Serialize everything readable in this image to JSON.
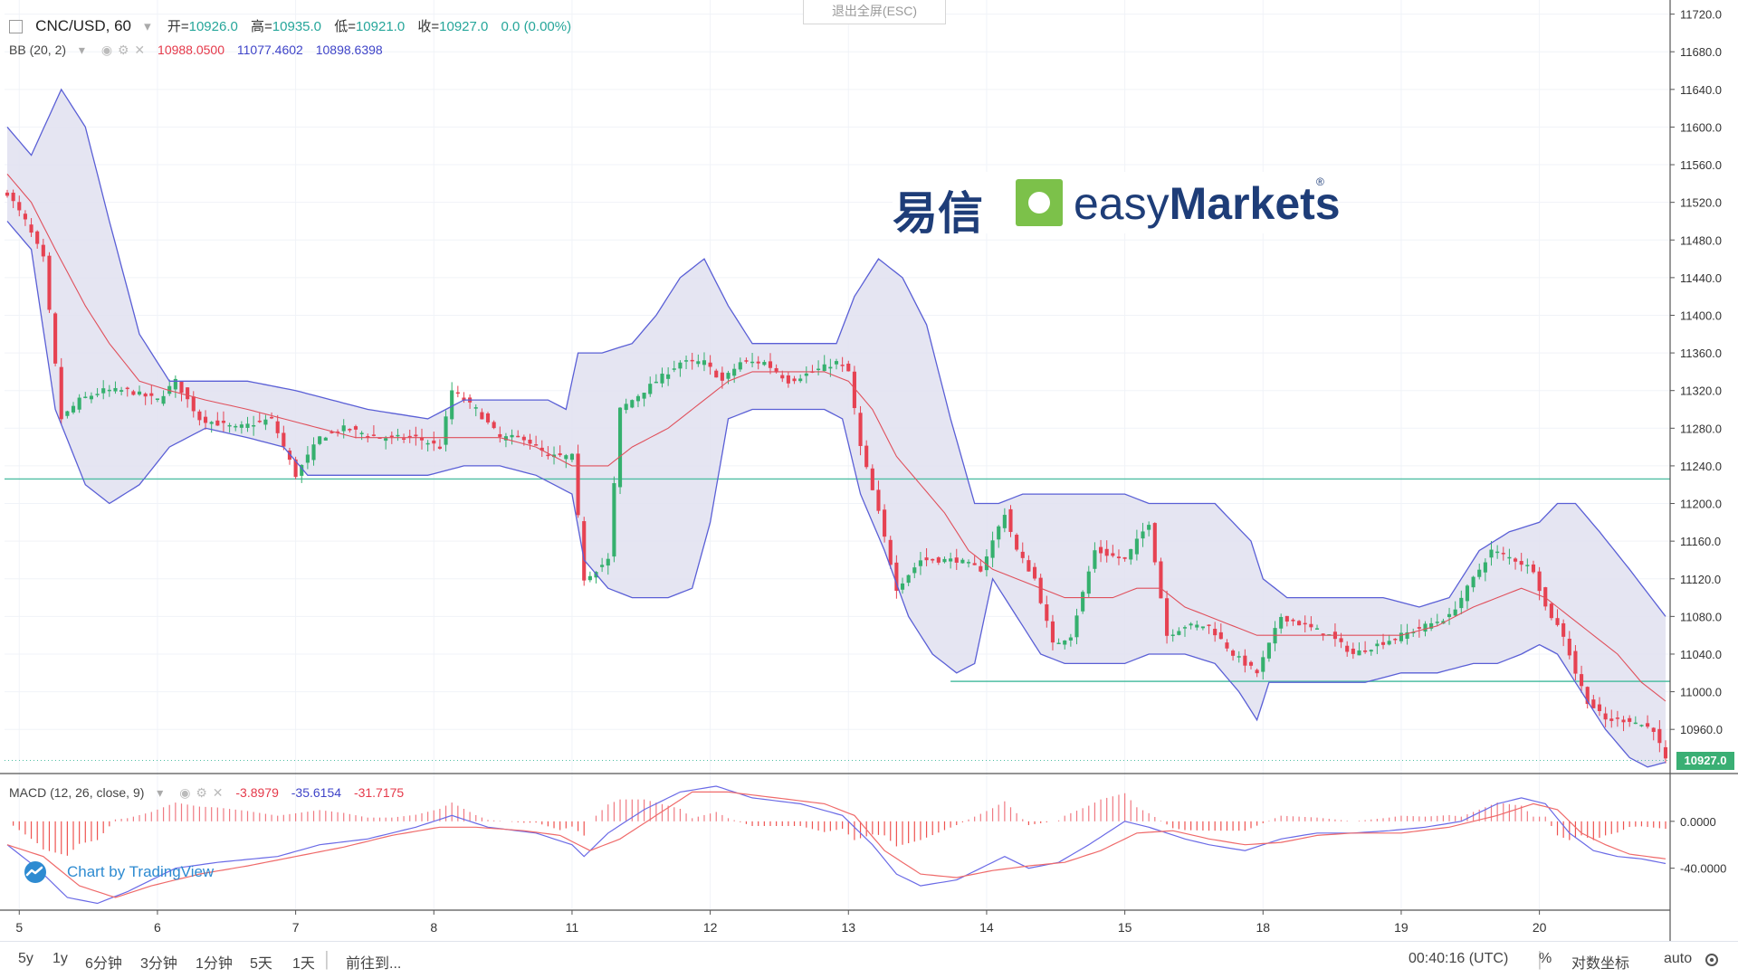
{
  "header": {
    "symbol": "CNC/USD, 60",
    "open_label": "开=",
    "open": "10926.0",
    "high_label": "高=",
    "high": "10935.0",
    "low_label": "低=",
    "low": "10921.0",
    "close_label": "收=",
    "close": "10927.0",
    "change": "0.0 (0.00%)",
    "bb_label": "BB (20, 2)",
    "bb_mid": "10988.0500",
    "bb_upper": "11077.4602",
    "bb_lower": "10898.6398",
    "macd_label": "MACD (12, 26, close, 9)",
    "macd_hist": "-3.8979",
    "macd_line": "-35.6154",
    "macd_signal": "-31.7175"
  },
  "overlay": {
    "esc_text": "退出全屏(ESC)",
    "logo_cn": "易信",
    "logo_en_light": "easy",
    "logo_en_bold": "Markets",
    "logo_reg": "®",
    "tradingview": "Chart by TradingView",
    "last_price": "10927.0"
  },
  "bottombar": {
    "ranges": [
      "5y",
      "1y",
      "6分钟",
      "3分钟",
      "1分钟",
      "5天",
      "1天"
    ],
    "goto": "前往到...",
    "clock": "00:40:16 (UTC)",
    "percent": "%",
    "log": "对数坐标",
    "auto": "auto"
  },
  "colors": {
    "up": "#26a69a",
    "down": "#ef5350",
    "upBody": "#35b06e",
    "downBody": "#e64252",
    "bbUpper": "#5a5fd6",
    "bbMid": "#e0505c",
    "band": "#e1e1f0",
    "macd": "#6a6ae6",
    "signal": "#ef6a6a",
    "hline": "#4fbea3",
    "accent": "#3aaf74"
  },
  "chart_data": {
    "type": "candlestick",
    "interval": "60",
    "y_ticks": [
      "11720.0",
      "11680.0",
      "11640.0",
      "11600.0",
      "11560.0",
      "11520.0",
      "11480.0",
      "11440.0",
      "11400.0",
      "11360.0",
      "11320.0",
      "11280.0",
      "11240.0",
      "11200.0",
      "11160.0",
      "11120.0",
      "11080.0",
      "11040.0",
      "11000.0",
      "10960.0"
    ],
    "ylim": [
      10915,
      11735
    ],
    "x_labels": [
      {
        "label": "5",
        "i": 2
      },
      {
        "label": "6",
        "i": 25
      },
      {
        "label": "7",
        "i": 48
      },
      {
        "label": "8",
        "i": 71
      },
      {
        "label": "11",
        "i": 94
      },
      {
        "label": "12",
        "i": 117
      },
      {
        "label": "13",
        "i": 140
      },
      {
        "label": "14",
        "i": 163
      },
      {
        "label": "15",
        "i": 186
      },
      {
        "label": "18",
        "i": 209
      },
      {
        "label": "19",
        "i": 232
      },
      {
        "label": "20",
        "i": 255
      }
    ],
    "close_anchors": [
      [
        0,
        11530
      ],
      [
        3,
        11500
      ],
      [
        6,
        11460
      ],
      [
        9,
        11290
      ],
      [
        12,
        11310
      ],
      [
        16,
        11320
      ],
      [
        20,
        11320
      ],
      [
        25,
        11310
      ],
      [
        28,
        11330
      ],
      [
        32,
        11290
      ],
      [
        38,
        11280
      ],
      [
        44,
        11290
      ],
      [
        48,
        11230
      ],
      [
        52,
        11270
      ],
      [
        56,
        11280
      ],
      [
        62,
        11270
      ],
      [
        68,
        11270
      ],
      [
        72,
        11260
      ],
      [
        74,
        11320
      ],
      [
        78,
        11300
      ],
      [
        82,
        11270
      ],
      [
        86,
        11270
      ],
      [
        90,
        11250
      ],
      [
        94,
        11250
      ],
      [
        96,
        11120
      ],
      [
        100,
        11140
      ],
      [
        102,
        11300
      ],
      [
        108,
        11330
      ],
      [
        112,
        11350
      ],
      [
        116,
        11350
      ],
      [
        119,
        11330
      ],
      [
        122,
        11350
      ],
      [
        126,
        11350
      ],
      [
        130,
        11330
      ],
      [
        134,
        11340
      ],
      [
        138,
        11350
      ],
      [
        140,
        11340
      ],
      [
        142,
        11260
      ],
      [
        145,
        11190
      ],
      [
        148,
        11110
      ],
      [
        152,
        11140
      ],
      [
        158,
        11140
      ],
      [
        162,
        11130
      ],
      [
        166,
        11190
      ],
      [
        168,
        11150
      ],
      [
        171,
        11120
      ],
      [
        174,
        11050
      ],
      [
        177,
        11060
      ],
      [
        181,
        11150
      ],
      [
        186,
        11140
      ],
      [
        190,
        11180
      ],
      [
        193,
        11060
      ],
      [
        196,
        11070
      ],
      [
        200,
        11070
      ],
      [
        204,
        11040
      ],
      [
        208,
        11020
      ],
      [
        212,
        11080
      ],
      [
        216,
        11070
      ],
      [
        220,
        11060
      ],
      [
        224,
        11040
      ],
      [
        228,
        11050
      ],
      [
        232,
        11060
      ],
      [
        236,
        11070
      ],
      [
        240,
        11080
      ],
      [
        244,
        11120
      ],
      [
        247,
        11150
      ],
      [
        251,
        11140
      ],
      [
        254,
        11130
      ],
      [
        256,
        11090
      ],
      [
        259,
        11060
      ],
      [
        261,
        11020
      ],
      [
        263,
        10990
      ],
      [
        266,
        10970
      ],
      [
        270,
        10970
      ],
      [
        274,
        10960
      ],
      [
        276,
        10927
      ]
    ],
    "bb_upper_anchors": [
      [
        0,
        11600
      ],
      [
        4,
        11570
      ],
      [
        9,
        11640
      ],
      [
        13,
        11600
      ],
      [
        17,
        11500
      ],
      [
        22,
        11380
      ],
      [
        27,
        11330
      ],
      [
        33,
        11330
      ],
      [
        40,
        11330
      ],
      [
        48,
        11320
      ],
      [
        54,
        11310
      ],
      [
        60,
        11300
      ],
      [
        70,
        11290
      ],
      [
        76,
        11310
      ],
      [
        84,
        11310
      ],
      [
        90,
        11310
      ],
      [
        93,
        11300
      ],
      [
        95,
        11360
      ],
      [
        99,
        11360
      ],
      [
        104,
        11370
      ],
      [
        108,
        11400
      ],
      [
        112,
        11440
      ],
      [
        116,
        11460
      ],
      [
        120,
        11410
      ],
      [
        124,
        11370
      ],
      [
        128,
        11370
      ],
      [
        134,
        11370
      ],
      [
        138,
        11370
      ],
      [
        141,
        11420
      ],
      [
        145,
        11460
      ],
      [
        149,
        11440
      ],
      [
        153,
        11390
      ],
      [
        157,
        11290
      ],
      [
        161,
        11200
      ],
      [
        165,
        11200
      ],
      [
        169,
        11210
      ],
      [
        175,
        11210
      ],
      [
        181,
        11210
      ],
      [
        186,
        11210
      ],
      [
        190,
        11200
      ],
      [
        196,
        11200
      ],
      [
        201,
        11200
      ],
      [
        207,
        11160
      ],
      [
        209,
        11120
      ],
      [
        213,
        11100
      ],
      [
        218,
        11100
      ],
      [
        223,
        11100
      ],
      [
        229,
        11100
      ],
      [
        235,
        11090
      ],
      [
        240,
        11100
      ],
      [
        245,
        11150
      ],
      [
        250,
        11170
      ],
      [
        255,
        11180
      ],
      [
        258,
        11200
      ],
      [
        261,
        11200
      ],
      [
        265,
        11170
      ],
      [
        270,
        11130
      ],
      [
        276,
        11080
      ]
    ],
    "bb_mid_anchors": [
      [
        0,
        11550
      ],
      [
        4,
        11520
      ],
      [
        8,
        11470
      ],
      [
        13,
        11410
      ],
      [
        17,
        11370
      ],
      [
        22,
        11330
      ],
      [
        27,
        11320
      ],
      [
        33,
        11310
      ],
      [
        40,
        11300
      ],
      [
        46,
        11290
      ],
      [
        52,
        11280
      ],
      [
        58,
        11270
      ],
      [
        64,
        11270
      ],
      [
        70,
        11270
      ],
      [
        76,
        11270
      ],
      [
        82,
        11270
      ],
      [
        88,
        11260
      ],
      [
        94,
        11240
      ],
      [
        100,
        11240
      ],
      [
        104,
        11260
      ],
      [
        110,
        11280
      ],
      [
        116,
        11310
      ],
      [
        120,
        11330
      ],
      [
        124,
        11340
      ],
      [
        130,
        11340
      ],
      [
        136,
        11340
      ],
      [
        140,
        11330
      ],
      [
        144,
        11300
      ],
      [
        148,
        11250
      ],
      [
        152,
        11220
      ],
      [
        156,
        11190
      ],
      [
        160,
        11150
      ],
      [
        164,
        11130
      ],
      [
        168,
        11120
      ],
      [
        172,
        11110
      ],
      [
        176,
        11100
      ],
      [
        180,
        11100
      ],
      [
        184,
        11100
      ],
      [
        188,
        11110
      ],
      [
        192,
        11110
      ],
      [
        196,
        11090
      ],
      [
        200,
        11080
      ],
      [
        204,
        11070
      ],
      [
        208,
        11060
      ],
      [
        212,
        11060
      ],
      [
        216,
        11060
      ],
      [
        220,
        11060
      ],
      [
        226,
        11060
      ],
      [
        232,
        11060
      ],
      [
        238,
        11070
      ],
      [
        244,
        11090
      ],
      [
        248,
        11100
      ],
      [
        252,
        11110
      ],
      [
        256,
        11100
      ],
      [
        260,
        11080
      ],
      [
        264,
        11060
      ],
      [
        268,
        11040
      ],
      [
        272,
        11010
      ],
      [
        276,
        10990
      ]
    ],
    "bb_lower_anchors": [
      [
        0,
        11500
      ],
      [
        4,
        11470
      ],
      [
        8,
        11300
      ],
      [
        13,
        11220
      ],
      [
        17,
        11200
      ],
      [
        22,
        11220
      ],
      [
        27,
        11260
      ],
      [
        33,
        11280
      ],
      [
        40,
        11270
      ],
      [
        46,
        11260
      ],
      [
        50,
        11230
      ],
      [
        54,
        11230
      ],
      [
        60,
        11230
      ],
      [
        70,
        11230
      ],
      [
        76,
        11240
      ],
      [
        82,
        11240
      ],
      [
        88,
        11230
      ],
      [
        94,
        11210
      ],
      [
        96,
        11140
      ],
      [
        100,
        11110
      ],
      [
        104,
        11100
      ],
      [
        110,
        11100
      ],
      [
        114,
        11110
      ],
      [
        117,
        11180
      ],
      [
        120,
        11290
      ],
      [
        124,
        11300
      ],
      [
        130,
        11300
      ],
      [
        136,
        11300
      ],
      [
        139,
        11290
      ],
      [
        142,
        11210
      ],
      [
        146,
        11150
      ],
      [
        150,
        11080
      ],
      [
        154,
        11040
      ],
      [
        158,
        11020
      ],
      [
        161,
        11030
      ],
      [
        164,
        11120
      ],
      [
        168,
        11080
      ],
      [
        172,
        11040
      ],
      [
        176,
        11030
      ],
      [
        181,
        11030
      ],
      [
        186,
        11030
      ],
      [
        190,
        11040
      ],
      [
        196,
        11040
      ],
      [
        201,
        11030
      ],
      [
        205,
        11000
      ],
      [
        208,
        10970
      ],
      [
        210,
        11010
      ],
      [
        215,
        11010
      ],
      [
        220,
        11010
      ],
      [
        226,
        11010
      ],
      [
        232,
        11020
      ],
      [
        238,
        11020
      ],
      [
        244,
        11030
      ],
      [
        248,
        11030
      ],
      [
        252,
        11040
      ],
      [
        255,
        11050
      ],
      [
        258,
        11040
      ],
      [
        262,
        11000
      ],
      [
        266,
        10960
      ],
      [
        270,
        10930
      ],
      [
        273,
        10920
      ],
      [
        276,
        10925
      ]
    ],
    "h_lines": [
      11226,
      11011,
      10927
    ],
    "macd": {
      "ticks": [
        "0.0000",
        "-40.0000"
      ],
      "ylim": [
        -75,
        40
      ],
      "macd_anchors": [
        [
          0,
          -20
        ],
        [
          5,
          -40
        ],
        [
          10,
          -65
        ],
        [
          15,
          -70
        ],
        [
          20,
          -60
        ],
        [
          28,
          -40
        ],
        [
          35,
          -35
        ],
        [
          45,
          -30
        ],
        [
          52,
          -20
        ],
        [
          60,
          -15
        ],
        [
          68,
          -5
        ],
        [
          74,
          5
        ],
        [
          80,
          -5
        ],
        [
          88,
          -10
        ],
        [
          94,
          -20
        ],
        [
          96,
          -30
        ],
        [
          100,
          -10
        ],
        [
          106,
          10
        ],
        [
          112,
          25
        ],
        [
          118,
          30
        ],
        [
          124,
          20
        ],
        [
          132,
          15
        ],
        [
          139,
          5
        ],
        [
          144,
          -20
        ],
        [
          148,
          -45
        ],
        [
          152,
          -55
        ],
        [
          158,
          -50
        ],
        [
          162,
          -40
        ],
        [
          166,
          -30
        ],
        [
          170,
          -40
        ],
        [
          175,
          -35
        ],
        [
          180,
          -20
        ],
        [
          186,
          0
        ],
        [
          190,
          -5
        ],
        [
          196,
          -15
        ],
        [
          200,
          -20
        ],
        [
          206,
          -25
        ],
        [
          212,
          -15
        ],
        [
          218,
          -10
        ],
        [
          224,
          -10
        ],
        [
          230,
          -8
        ],
        [
          236,
          -5
        ],
        [
          242,
          0
        ],
        [
          248,
          15
        ],
        [
          252,
          20
        ],
        [
          256,
          15
        ],
        [
          260,
          -10
        ],
        [
          264,
          -25
        ],
        [
          268,
          -30
        ],
        [
          272,
          -32
        ],
        [
          276,
          -36
        ]
      ],
      "signal_anchors": [
        [
          0,
          -20
        ],
        [
          6,
          -30
        ],
        [
          12,
          -55
        ],
        [
          18,
          -65
        ],
        [
          24,
          -55
        ],
        [
          32,
          -45
        ],
        [
          40,
          -38
        ],
        [
          48,
          -30
        ],
        [
          56,
          -22
        ],
        [
          64,
          -12
        ],
        [
          72,
          -5
        ],
        [
          78,
          -5
        ],
        [
          86,
          -8
        ],
        [
          92,
          -12
        ],
        [
          97,
          -25
        ],
        [
          102,
          -15
        ],
        [
          108,
          5
        ],
        [
          114,
          25
        ],
        [
          120,
          25
        ],
        [
          128,
          20
        ],
        [
          136,
          15
        ],
        [
          141,
          5
        ],
        [
          146,
          -25
        ],
        [
          152,
          -45
        ],
        [
          158,
          -48
        ],
        [
          164,
          -42
        ],
        [
          170,
          -38
        ],
        [
          176,
          -35
        ],
        [
          182,
          -25
        ],
        [
          188,
          -10
        ],
        [
          194,
          -8
        ],
        [
          200,
          -15
        ],
        [
          206,
          -20
        ],
        [
          212,
          -18
        ],
        [
          218,
          -12
        ],
        [
          224,
          -10
        ],
        [
          232,
          -10
        ],
        [
          240,
          -5
        ],
        [
          248,
          5
        ],
        [
          254,
          15
        ],
        [
          258,
          10
        ],
        [
          262,
          -10
        ],
        [
          266,
          -20
        ],
        [
          270,
          -28
        ],
        [
          276,
          -32
        ]
      ]
    }
  }
}
